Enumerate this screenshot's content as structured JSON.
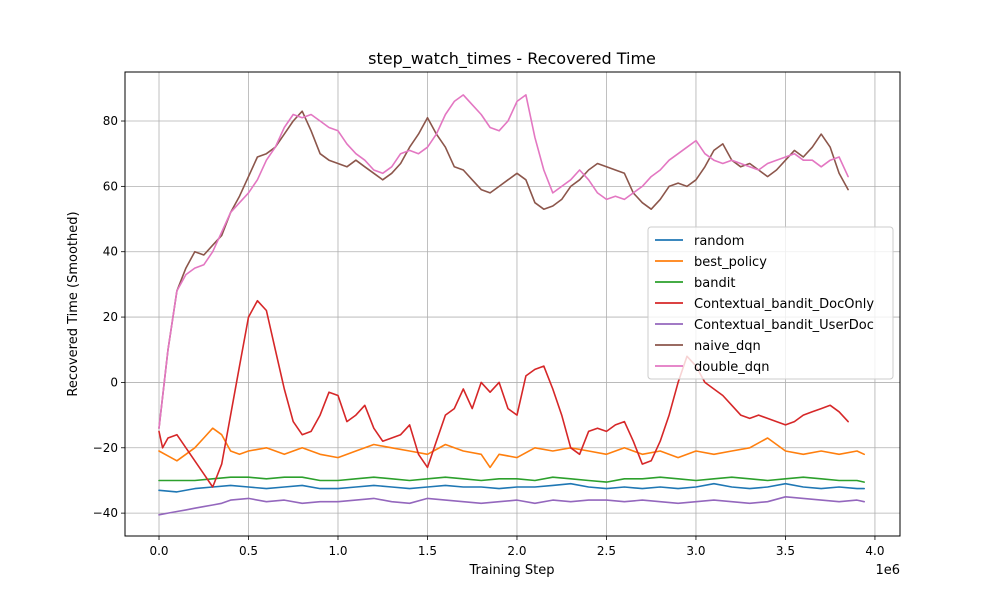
{
  "chart_data": {
    "type": "line",
    "title": "step_watch_times - Recovered Time",
    "xlabel": "Training Step",
    "ylabel": "Recovered Time (Smoothed)",
    "x_offset_label": "1e6",
    "xlim": [
      -0.19,
      4.14
    ],
    "ylim": [
      -47,
      95
    ],
    "x_ticks": [
      0.0,
      0.5,
      1.0,
      1.5,
      2.0,
      2.5,
      3.0,
      3.5,
      4.0
    ],
    "x_tick_labels": [
      "0.0",
      "0.5",
      "1.0",
      "1.5",
      "2.0",
      "2.5",
      "3.0",
      "3.5",
      "4.0"
    ],
    "y_ticks": [
      -40,
      -20,
      0,
      20,
      40,
      60,
      80
    ],
    "y_tick_labels": [
      "−40",
      "−20",
      "0",
      "20",
      "40",
      "60",
      "80"
    ],
    "grid": true,
    "legend_position": "center-right",
    "series": [
      {
        "name": "random",
        "color": "#1f77b4",
        "x": [
          0.0,
          0.1,
          0.2,
          0.3,
          0.4,
          0.5,
          0.6,
          0.7,
          0.8,
          0.9,
          1.0,
          1.1,
          1.2,
          1.3,
          1.4,
          1.5,
          1.6,
          1.7,
          1.8,
          1.9,
          2.0,
          2.1,
          2.2,
          2.3,
          2.4,
          2.5,
          2.6,
          2.7,
          2.8,
          2.9,
          3.0,
          3.1,
          3.2,
          3.3,
          3.4,
          3.5,
          3.6,
          3.7,
          3.8,
          3.9,
          3.94
        ],
        "y": [
          -33,
          -33.5,
          -32.5,
          -32,
          -31.5,
          -32,
          -32.5,
          -32,
          -31.5,
          -32.5,
          -32.5,
          -32,
          -31.5,
          -32,
          -32.5,
          -32,
          -31.5,
          -32,
          -32,
          -32.5,
          -32,
          -32,
          -31.5,
          -31,
          -32,
          -32.5,
          -32,
          -32.5,
          -32,
          -32.5,
          -32,
          -31,
          -32,
          -32.5,
          -32,
          -31,
          -32,
          -32.5,
          -32,
          -32.5,
          -32.5
        ]
      },
      {
        "name": "best_policy",
        "color": "#ff7f0e",
        "x": [
          0.0,
          0.05,
          0.1,
          0.15,
          0.2,
          0.25,
          0.3,
          0.35,
          0.4,
          0.45,
          0.5,
          0.6,
          0.7,
          0.8,
          0.9,
          1.0,
          1.1,
          1.2,
          1.3,
          1.4,
          1.5,
          1.6,
          1.7,
          1.8,
          1.85,
          1.9,
          2.0,
          2.1,
          2.2,
          2.3,
          2.4,
          2.5,
          2.6,
          2.7,
          2.8,
          2.9,
          3.0,
          3.1,
          3.2,
          3.3,
          3.4,
          3.5,
          3.6,
          3.7,
          3.8,
          3.9,
          3.94
        ],
        "y": [
          -21,
          -22.5,
          -24,
          -22,
          -20,
          -17,
          -14,
          -16,
          -21,
          -22,
          -21,
          -20,
          -22,
          -20,
          -22,
          -23,
          -21,
          -19,
          -20,
          -21,
          -22,
          -19,
          -21,
          -22,
          -26,
          -22,
          -23,
          -20,
          -21,
          -20,
          -21,
          -22,
          -20,
          -22,
          -21,
          -23,
          -21,
          -22,
          -21,
          -20,
          -17,
          -21,
          -22,
          -21,
          -22,
          -21,
          -22
        ]
      },
      {
        "name": "bandit",
        "color": "#2ca02c",
        "x": [
          0.0,
          0.1,
          0.2,
          0.3,
          0.4,
          0.5,
          0.6,
          0.7,
          0.8,
          0.9,
          1.0,
          1.1,
          1.2,
          1.3,
          1.4,
          1.5,
          1.6,
          1.7,
          1.8,
          1.9,
          2.0,
          2.1,
          2.2,
          2.3,
          2.4,
          2.5,
          2.6,
          2.7,
          2.8,
          2.9,
          3.0,
          3.1,
          3.2,
          3.3,
          3.4,
          3.5,
          3.6,
          3.7,
          3.8,
          3.9,
          3.94
        ],
        "y": [
          -30,
          -30,
          -30,
          -29.5,
          -29,
          -29,
          -29.5,
          -29,
          -29,
          -30,
          -30,
          -29.5,
          -29,
          -29.5,
          -30,
          -29.5,
          -29,
          -29.5,
          -30,
          -29.5,
          -29.5,
          -30,
          -29,
          -29.5,
          -30,
          -30.5,
          -29.5,
          -29.5,
          -29,
          -29.5,
          -30,
          -29.5,
          -29,
          -29.5,
          -30,
          -29.5,
          -29,
          -29.5,
          -30,
          -30,
          -30.5
        ]
      },
      {
        "name": "Contextual_bandit_DocOnly",
        "color": "#d62728",
        "x": [
          0.0,
          0.02,
          0.05,
          0.1,
          0.15,
          0.2,
          0.25,
          0.3,
          0.35,
          0.4,
          0.45,
          0.5,
          0.55,
          0.6,
          0.65,
          0.7,
          0.75,
          0.8,
          0.85,
          0.9,
          0.95,
          1.0,
          1.05,
          1.1,
          1.15,
          1.2,
          1.25,
          1.3,
          1.35,
          1.4,
          1.45,
          1.5,
          1.55,
          1.6,
          1.65,
          1.7,
          1.75,
          1.8,
          1.85,
          1.9,
          1.95,
          2.0,
          2.05,
          2.1,
          2.15,
          2.2,
          2.25,
          2.3,
          2.35,
          2.4,
          2.45,
          2.5,
          2.55,
          2.6,
          2.65,
          2.7,
          2.75,
          2.8,
          2.85,
          2.9,
          2.95,
          3.0,
          3.05,
          3.1,
          3.15,
          3.2,
          3.25,
          3.3,
          3.35,
          3.4,
          3.45,
          3.5,
          3.55,
          3.6,
          3.65,
          3.7,
          3.75,
          3.8,
          3.85
        ],
        "y": [
          -15,
          -20,
          -17,
          -16,
          -20,
          -24,
          -28,
          -32,
          -25,
          -10,
          5,
          20,
          25,
          22,
          10,
          -2,
          -12,
          -16,
          -15,
          -10,
          -3,
          -4,
          -12,
          -10,
          -7,
          -14,
          -18,
          -17,
          -16,
          -13,
          -22,
          -26,
          -18,
          -10,
          -8,
          -2,
          -8,
          0,
          -3,
          0,
          -8,
          -10,
          2,
          4,
          5,
          -2,
          -10,
          -20,
          -22,
          -15,
          -14,
          -15,
          -13,
          -12,
          -18,
          -25,
          -24,
          -18,
          -10,
          0,
          8,
          5,
          0,
          -2,
          -4,
          -7,
          -10,
          -11,
          -10,
          -11,
          -12,
          -13,
          -12,
          -10,
          -9,
          -8,
          -7,
          -9,
          -12
        ]
      },
      {
        "name": "Contextual_bandit_UserDoc",
        "color": "#9467bd",
        "x": [
          0.0,
          0.05,
          0.1,
          0.15,
          0.2,
          0.25,
          0.3,
          0.35,
          0.4,
          0.5,
          0.6,
          0.7,
          0.8,
          0.9,
          1.0,
          1.1,
          1.2,
          1.3,
          1.4,
          1.5,
          1.6,
          1.7,
          1.8,
          1.9,
          2.0,
          2.1,
          2.2,
          2.3,
          2.4,
          2.5,
          2.6,
          2.7,
          2.8,
          2.9,
          3.0,
          3.1,
          3.2,
          3.3,
          3.4,
          3.5,
          3.6,
          3.7,
          3.8,
          3.9,
          3.94
        ],
        "y": [
          -40.5,
          -40,
          -39.5,
          -39,
          -38.5,
          -38,
          -37.5,
          -37,
          -36,
          -35.5,
          -36.5,
          -36,
          -37,
          -36.5,
          -36.5,
          -36,
          -35.5,
          -36.5,
          -37,
          -35.5,
          -36,
          -36.5,
          -37,
          -36.5,
          -36,
          -37,
          -36,
          -36.5,
          -36,
          -36,
          -36.5,
          -36,
          -36.5,
          -37,
          -36.5,
          -36,
          -36.5,
          -37,
          -36.5,
          -35,
          -35.5,
          -36,
          -36.5,
          -36,
          -36.5
        ]
      },
      {
        "name": "naive_dqn",
        "color": "#8c564b",
        "x": [
          0.0,
          0.05,
          0.1,
          0.15,
          0.2,
          0.25,
          0.3,
          0.35,
          0.4,
          0.45,
          0.5,
          0.55,
          0.6,
          0.65,
          0.7,
          0.75,
          0.8,
          0.85,
          0.9,
          0.95,
          1.0,
          1.05,
          1.1,
          1.15,
          1.2,
          1.25,
          1.3,
          1.35,
          1.4,
          1.45,
          1.5,
          1.55,
          1.6,
          1.65,
          1.7,
          1.75,
          1.8,
          1.85,
          1.9,
          1.95,
          2.0,
          2.05,
          2.1,
          2.15,
          2.2,
          2.25,
          2.3,
          2.35,
          2.4,
          2.45,
          2.5,
          2.55,
          2.6,
          2.65,
          2.7,
          2.75,
          2.8,
          2.85,
          2.9,
          2.95,
          3.0,
          3.05,
          3.1,
          3.15,
          3.2,
          3.25,
          3.3,
          3.35,
          3.4,
          3.45,
          3.5,
          3.55,
          3.6,
          3.65,
          3.7,
          3.75,
          3.8,
          3.85
        ],
        "y": [
          -14,
          10,
          28,
          35,
          40,
          39,
          42,
          45,
          52,
          57,
          63,
          69,
          70,
          72,
          76,
          80,
          83,
          77,
          70,
          68,
          67,
          66,
          68,
          66,
          64,
          62,
          64,
          67,
          72,
          76,
          81,
          76,
          72,
          66,
          65,
          62,
          59,
          58,
          60,
          62,
          64,
          62,
          55,
          53,
          54,
          56,
          60,
          62,
          65,
          67,
          66,
          65,
          64,
          58,
          55,
          53,
          56,
          60,
          61,
          60,
          62,
          66,
          71,
          73,
          68,
          66,
          67,
          65,
          63,
          65,
          68,
          71,
          69,
          72,
          76,
          72,
          64,
          59
        ]
      },
      {
        "name": "double_dqn",
        "color": "#e377c2",
        "x": [
          0.0,
          0.05,
          0.1,
          0.15,
          0.2,
          0.25,
          0.3,
          0.35,
          0.4,
          0.45,
          0.5,
          0.55,
          0.6,
          0.65,
          0.7,
          0.75,
          0.8,
          0.85,
          0.9,
          0.95,
          1.0,
          1.05,
          1.1,
          1.15,
          1.2,
          1.25,
          1.3,
          1.35,
          1.4,
          1.45,
          1.5,
          1.55,
          1.6,
          1.65,
          1.7,
          1.75,
          1.8,
          1.85,
          1.9,
          1.95,
          2.0,
          2.05,
          2.1,
          2.15,
          2.2,
          2.25,
          2.3,
          2.35,
          2.4,
          2.45,
          2.5,
          2.55,
          2.6,
          2.65,
          2.7,
          2.75,
          2.8,
          2.85,
          2.9,
          2.95,
          3.0,
          3.05,
          3.1,
          3.15,
          3.2,
          3.25,
          3.3,
          3.35,
          3.4,
          3.45,
          3.5,
          3.55,
          3.6,
          3.65,
          3.7,
          3.75,
          3.8,
          3.85
        ],
        "y": [
          -14,
          10,
          28,
          33,
          35,
          36,
          40,
          46,
          52,
          55,
          58,
          62,
          68,
          72,
          78,
          82,
          81,
          82,
          80,
          78,
          77,
          73,
          70,
          68,
          65,
          64,
          66,
          70,
          71,
          70,
          72,
          76,
          82,
          86,
          88,
          85,
          82,
          78,
          77,
          80,
          86,
          88,
          75,
          65,
          58,
          60,
          62,
          65,
          62,
          58,
          56,
          57,
          56,
          58,
          60,
          63,
          65,
          68,
          70,
          72,
          74,
          70,
          68,
          67,
          68,
          67,
          66,
          65,
          67,
          68,
          69,
          70,
          68,
          68,
          66,
          68,
          69,
          63
        ]
      }
    ]
  }
}
